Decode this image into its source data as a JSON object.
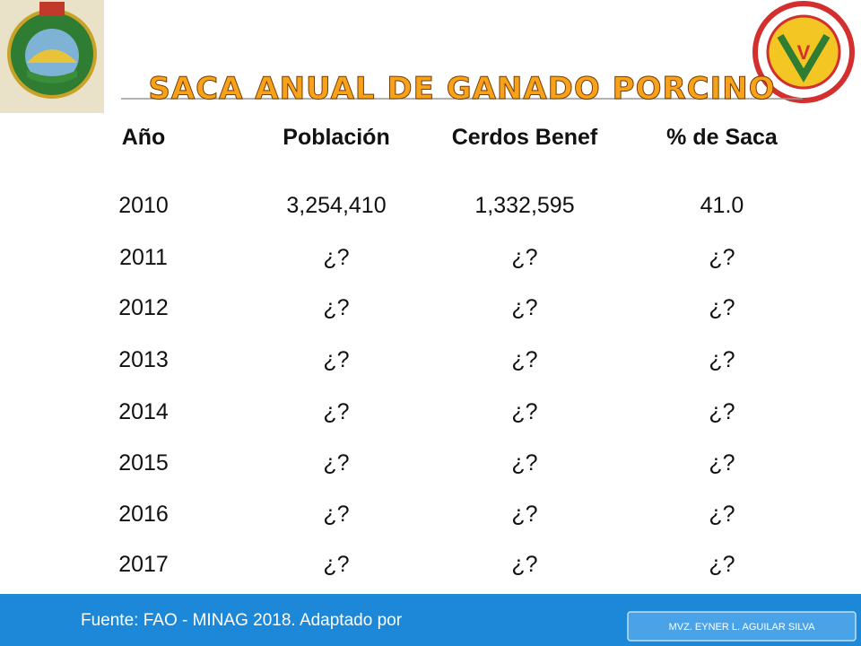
{
  "header": {
    "title": "SACA ANUAL DE GANADO PORCINO"
  },
  "table": {
    "columns": [
      "Año",
      "Población",
      "Cerdos Benef",
      "% de Saca"
    ],
    "rows": [
      [
        "2010",
        "3,254,410",
        "1,332,595",
        "41.0"
      ],
      [
        "2011",
        "¿?",
        "¿?",
        "¿?"
      ],
      [
        "2012",
        "¿?",
        "¿?",
        "¿?"
      ],
      [
        "2013",
        "¿?",
        "¿?",
        "¿?"
      ],
      [
        "2014",
        "¿?",
        "¿?",
        "¿?"
      ],
      [
        "2015",
        "¿?",
        "¿?",
        "¿?"
      ],
      [
        "2016",
        "¿?",
        "¿?",
        "¿?"
      ],
      [
        "2017",
        "¿?",
        "¿?",
        "¿?"
      ]
    ]
  },
  "footer": {
    "source": "Fuente: FAO - MINAG 2018. Adaptado por",
    "author": "MVZ. EYNER L. AGUILAR SILVA"
  }
}
